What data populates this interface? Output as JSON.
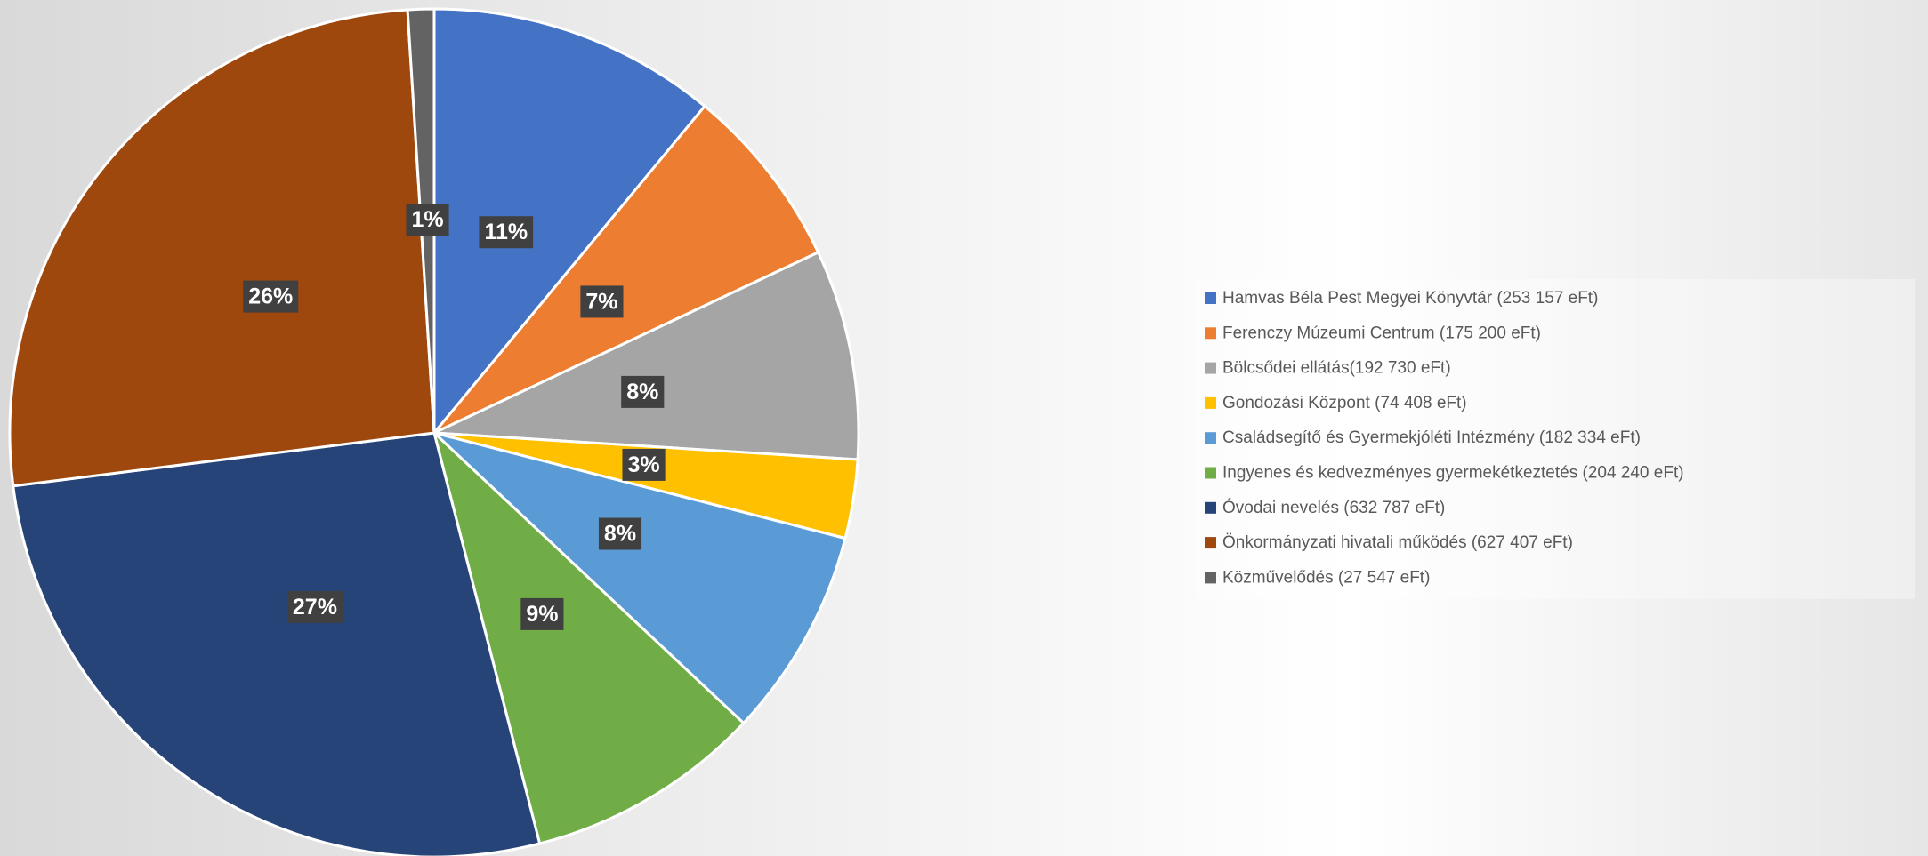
{
  "chart_data": {
    "type": "pie",
    "categories": [
      "Hamvas Béla Pest Megyei Könyvtár (253 157 eFt)",
      "Ferenczy Múzeumi Centrum (175 200 eFt)",
      "Bölcsődei ellátás(192 730 eFt)",
      "Gondozási Központ (74 408 eFt)",
      "Családsegítő és Gyermekjóléti Intézmény (182 334 eFt)",
      "Ingyenes és kedvezményes gyermekétkeztetés (204 240 eFt)",
      "Óvodai nevelés (632 787 eFt)",
      "Önkormányzati hivatali működés (627 407 eFt)",
      "Közművelődés (27 547 eFt)"
    ],
    "values": [
      11,
      7,
      8,
      3,
      8,
      9,
      27,
      26,
      1
    ],
    "value_labels": [
      "11%",
      "7%",
      "8%",
      "3%",
      "8%",
      "9%",
      "27%",
      "26%",
      "1%"
    ],
    "colors": [
      "#4472c4",
      "#ed7d31",
      "#a5a5a5",
      "#ffc000",
      "#5b9bd5",
      "#70ad47",
      "#264478",
      "#9e480e",
      "#636363"
    ],
    "legend": "right"
  }
}
